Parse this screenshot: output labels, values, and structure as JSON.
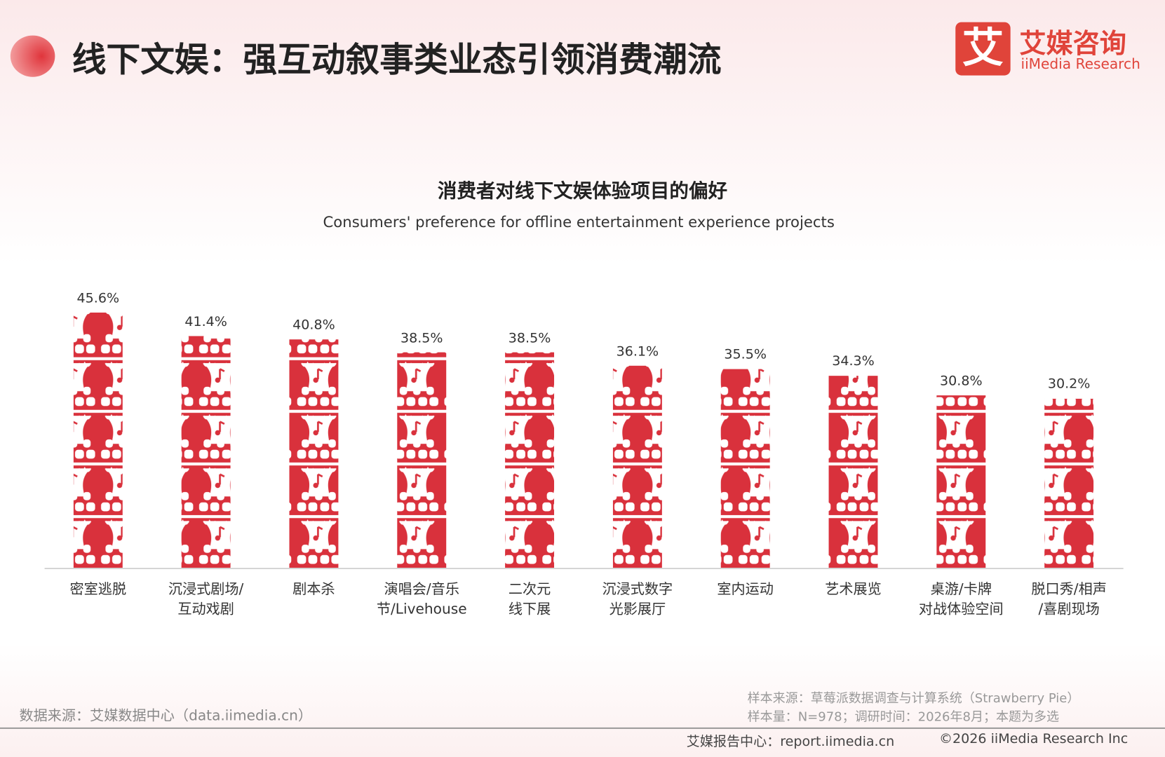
{
  "header": {
    "title": "线下文娱：强互动叙事类业态引领消费潮流",
    "logo_mark": "艾",
    "logo_cn": "艾媒咨询",
    "logo_en": "iiMedia Research"
  },
  "chart_data": {
    "type": "bar",
    "title": "消费者对线下文娱体验项目的偏好",
    "subtitle": "Consumers' preference for offline entertainment experience projects",
    "categories": [
      "密室逃脱",
      "沉浸式剧场/\n互动戏剧",
      "剧本杀",
      "演唱会/音乐\n节/Livehouse",
      "二次元\n线下展",
      "沉浸式数字\n光影展厅",
      "室内运动",
      "艺术展览",
      "桌游/卡牌\n对战体验空间",
      "脱口秀/相声\n/喜剧现场"
    ],
    "values": [
      45.6,
      41.4,
      40.8,
      38.5,
      38.5,
      36.1,
      35.5,
      34.3,
      30.8,
      30.2
    ],
    "value_labels": [
      "45.6%",
      "41.4%",
      "40.8%",
      "38.5%",
      "38.5%",
      "36.1%",
      "35.5%",
      "34.3%",
      "30.8%",
      "30.2%"
    ],
    "color": "#d9313c"
  },
  "footer": {
    "data_source": "数据来源：艾媒数据中心（data.iimedia.cn）",
    "sample_source": "样本来源：草莓派数据调查与计算系统（Strawberry Pie）",
    "sample_size": "样本量：N=978；调研时间：2026年8月；本题为多选",
    "report_center": "艾媒报告中心：report.iimedia.cn",
    "copyright": "©2026  iiMedia Research  Inc"
  }
}
